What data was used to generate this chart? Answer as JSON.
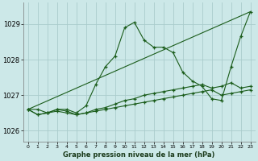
{
  "xlabel": "Graphe pression niveau de la mer (hPa)",
  "xlim": [
    -0.5,
    23.5
  ],
  "ylim": [
    1025.7,
    1029.6
  ],
  "yticks": [
    1026,
    1027,
    1028,
    1029
  ],
  "xticks": [
    0,
    1,
    2,
    3,
    4,
    5,
    6,
    7,
    8,
    9,
    10,
    11,
    12,
    13,
    14,
    15,
    16,
    17,
    18,
    19,
    20,
    21,
    22,
    23
  ],
  "bg_color": "#cce8e8",
  "line_color": "#1a5c1a",
  "grid_color": "#aacccc",
  "series": [
    {
      "x": [
        0,
        1,
        2,
        3,
        4,
        5,
        6,
        7,
        8,
        9,
        10,
        11,
        12,
        13,
        14,
        15,
        16,
        17,
        18,
        19,
        20,
        21,
        22,
        23
      ],
      "y": [
        1026.6,
        1026.6,
        1026.5,
        1026.6,
        1026.6,
        1026.5,
        1026.7,
        1027.3,
        1027.8,
        1028.1,
        1028.9,
        1029.05,
        1028.55,
        1028.35,
        1028.35,
        1028.2,
        1027.65,
        1027.4,
        1027.25,
        1026.9,
        1026.85,
        1027.8,
        1028.65,
        1029.35
      ]
    },
    {
      "x": [
        0,
        23
      ],
      "y": [
        1026.6,
        1029.35
      ]
    },
    {
      "x": [
        0,
        1,
        2,
        3,
        4,
        5,
        6,
        7,
        8,
        9,
        10,
        11,
        12,
        13,
        14,
        15,
        16,
        17,
        18,
        19,
        20,
        21,
        22,
        23
      ],
      "y": [
        1026.6,
        1026.45,
        1026.5,
        1026.55,
        1026.5,
        1026.45,
        1026.5,
        1026.55,
        1026.6,
        1026.65,
        1026.7,
        1026.75,
        1026.8,
        1026.85,
        1026.9,
        1026.95,
        1027.0,
        1027.05,
        1027.1,
        1027.15,
        1027.0,
        1027.05,
        1027.1,
        1027.15
      ]
    },
    {
      "x": [
        0,
        1,
        2,
        3,
        4,
        5,
        6,
        7,
        8,
        9,
        10,
        11,
        12,
        13,
        14,
        15,
        16,
        17,
        18,
        19,
        20,
        21,
        22,
        23
      ],
      "y": [
        1026.6,
        1026.45,
        1026.5,
        1026.6,
        1026.55,
        1026.45,
        1026.5,
        1026.6,
        1026.65,
        1026.75,
        1026.85,
        1026.9,
        1027.0,
        1027.05,
        1027.1,
        1027.15,
        1027.2,
        1027.25,
        1027.3,
        1027.2,
        1027.25,
        1027.35,
        1027.2,
        1027.25
      ]
    }
  ]
}
